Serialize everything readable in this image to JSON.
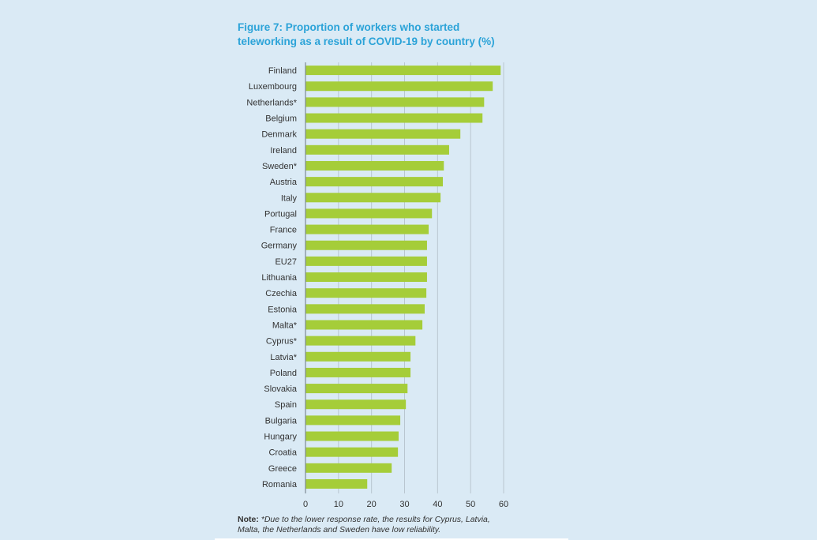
{
  "chart_data": {
    "type": "bar",
    "orientation": "horizontal",
    "title_lines": [
      "Figure 7: Proportion of workers who started",
      "teleworking as a result of COVID-19 by country (%)"
    ],
    "xlabel": "",
    "ylabel": "",
    "xlim": [
      0,
      60
    ],
    "xticks": [
      0,
      10,
      20,
      30,
      40,
      50,
      60
    ],
    "grid": true,
    "legend": "none",
    "categories": [
      "Finland",
      "Luxembourg",
      "Netherlands*",
      "Belgium",
      "Denmark",
      "Ireland",
      "Sweden*",
      "Austria",
      "Italy",
      "Portugal",
      "France",
      "Germany",
      "EU27",
      "Lithuania",
      "Czechia",
      "Estonia",
      "Malta*",
      "Cyprus*",
      "Latvia*",
      "Poland",
      "Slovakia",
      "Spain",
      "Bulgaria",
      "Hungary",
      "Croatia",
      "Greece",
      "Romania"
    ],
    "values": [
      59.1,
      56.7,
      54.1,
      53.6,
      46.9,
      43.5,
      41.9,
      41.6,
      40.9,
      38.3,
      37.3,
      36.8,
      36.8,
      36.8,
      36.6,
      36.1,
      35.4,
      33.3,
      31.8,
      31.8,
      30.9,
      30.4,
      28.7,
      28.2,
      28.0,
      26.1,
      18.7
    ],
    "bar_color": "#a5cd39",
    "grid_color": "#b9c6d0",
    "title_color": "#2ba3d8",
    "background_color": "#daeaf5"
  },
  "note": {
    "label": "Note:",
    "text_line1": " *Due to the lower response rate, the results for Cyprus, Latvia,",
    "text_line2": "Malta, the Netherlands and Sweden have low reliability."
  }
}
